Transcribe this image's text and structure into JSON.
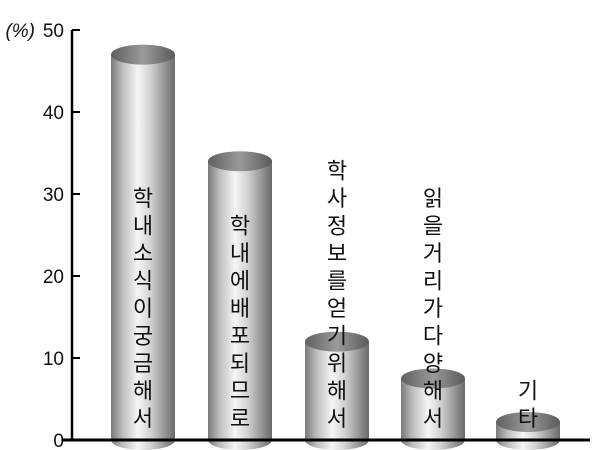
{
  "chart_data": {
    "type": "bar",
    "style": "3d-cylinder",
    "unit_label": "(%)",
    "ylim": [
      0,
      50
    ],
    "yticks": [
      0,
      10,
      20,
      30,
      40,
      50
    ],
    "categories": [
      "학내소식이궁금해서",
      "학내에배포되므로",
      "학사정보를얻기위해서",
      "읽을거리가다양해서",
      "기타"
    ],
    "values": [
      47,
      34,
      12,
      7.5,
      2.2
    ],
    "colors": {
      "bar_light": "#f4f4f4",
      "bar_mid": "#b8b8b8",
      "bar_dark": "#6e6e6e",
      "axis": "#000000"
    }
  }
}
